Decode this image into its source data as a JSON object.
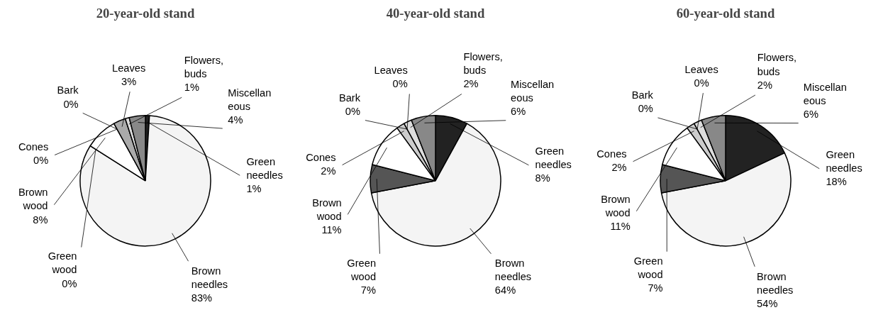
{
  "chart_data": [
    {
      "type": "pie",
      "title": "20-year-old stand",
      "categories": [
        "Green\nneedles",
        "Brown\nneedles",
        "Green\nwood",
        "Brown\nwood",
        "Cones",
        "Bark",
        "Leaves",
        "Flowers,\nbuds",
        "Miscellan\neous"
      ],
      "values": [
        1,
        83,
        0,
        8,
        0,
        0,
        3,
        1,
        4
      ],
      "value_labels": [
        "1%",
        "83%",
        "0%",
        "8%",
        "0%",
        "0%",
        "3%",
        "1%",
        "4%"
      ],
      "colors": [
        "#222222",
        "#f4f4f4",
        "#555555",
        "#ffffff",
        "#cccccc",
        "#ffffff",
        "#aaaaaa",
        "#dddddd",
        "#888888"
      ]
    },
    {
      "type": "pie",
      "title": "40-year-old stand",
      "categories": [
        "Green\nneedles",
        "Brown\nneedles",
        "Green\nwood",
        "Brown\nwood",
        "Cones",
        "Bark",
        "Leaves",
        "Flowers,\nbuds",
        "Miscellan\neous"
      ],
      "values": [
        8,
        64,
        7,
        11,
        2,
        0,
        0,
        2,
        6
      ],
      "value_labels": [
        "8%",
        "64%",
        "7%",
        "11%",
        "2%",
        "0%",
        "0%",
        "2%",
        "6%"
      ],
      "colors": [
        "#222222",
        "#f4f4f4",
        "#555555",
        "#ffffff",
        "#cccccc",
        "#ffffff",
        "#aaaaaa",
        "#dddddd",
        "#888888"
      ]
    },
    {
      "type": "pie",
      "title": "60-year-old stand",
      "categories": [
        "Green\nneedles",
        "Brown\nneedles",
        "Green\nwood",
        "Brown\nwood",
        "Cones",
        "Bark",
        "Leaves",
        "Flowers,\nbuds",
        "Miscellan\neous"
      ],
      "values": [
        18,
        54,
        7,
        11,
        2,
        0,
        0,
        2,
        6
      ],
      "value_labels": [
        "18%",
        "54%",
        "7%",
        "11%",
        "2%",
        "0%",
        "0%",
        "2%",
        "6%"
      ],
      "colors": [
        "#222222",
        "#f4f4f4",
        "#555555",
        "#ffffff",
        "#cccccc",
        "#ffffff",
        "#aaaaaa",
        "#dddddd",
        "#888888"
      ]
    }
  ]
}
